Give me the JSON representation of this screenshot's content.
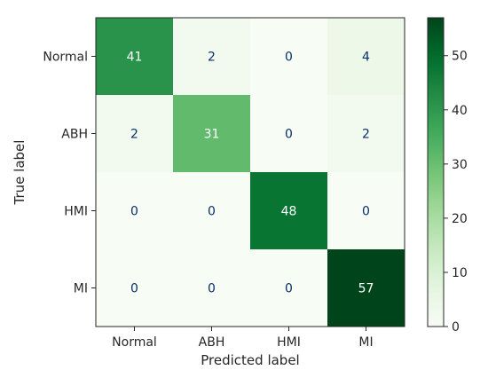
{
  "chart_data": {
    "type": "heatmap",
    "xlabel": "Predicted label",
    "ylabel": "True label",
    "x_categories": [
      "Normal",
      "ABH",
      "HMI",
      "MI"
    ],
    "y_categories": [
      "Normal",
      "ABH",
      "HMI",
      "MI"
    ],
    "values": [
      [
        41,
        2,
        0,
        4
      ],
      [
        2,
        31,
        0,
        2
      ],
      [
        0,
        0,
        48,
        0
      ],
      [
        0,
        0,
        0,
        57
      ]
    ],
    "colormap": "Greens",
    "color_min": "#f7fcf5",
    "color_max": "#00441b",
    "colorbar": {
      "range": [
        0,
        57
      ],
      "ticks": [
        0,
        10,
        20,
        30,
        40,
        50
      ]
    }
  }
}
